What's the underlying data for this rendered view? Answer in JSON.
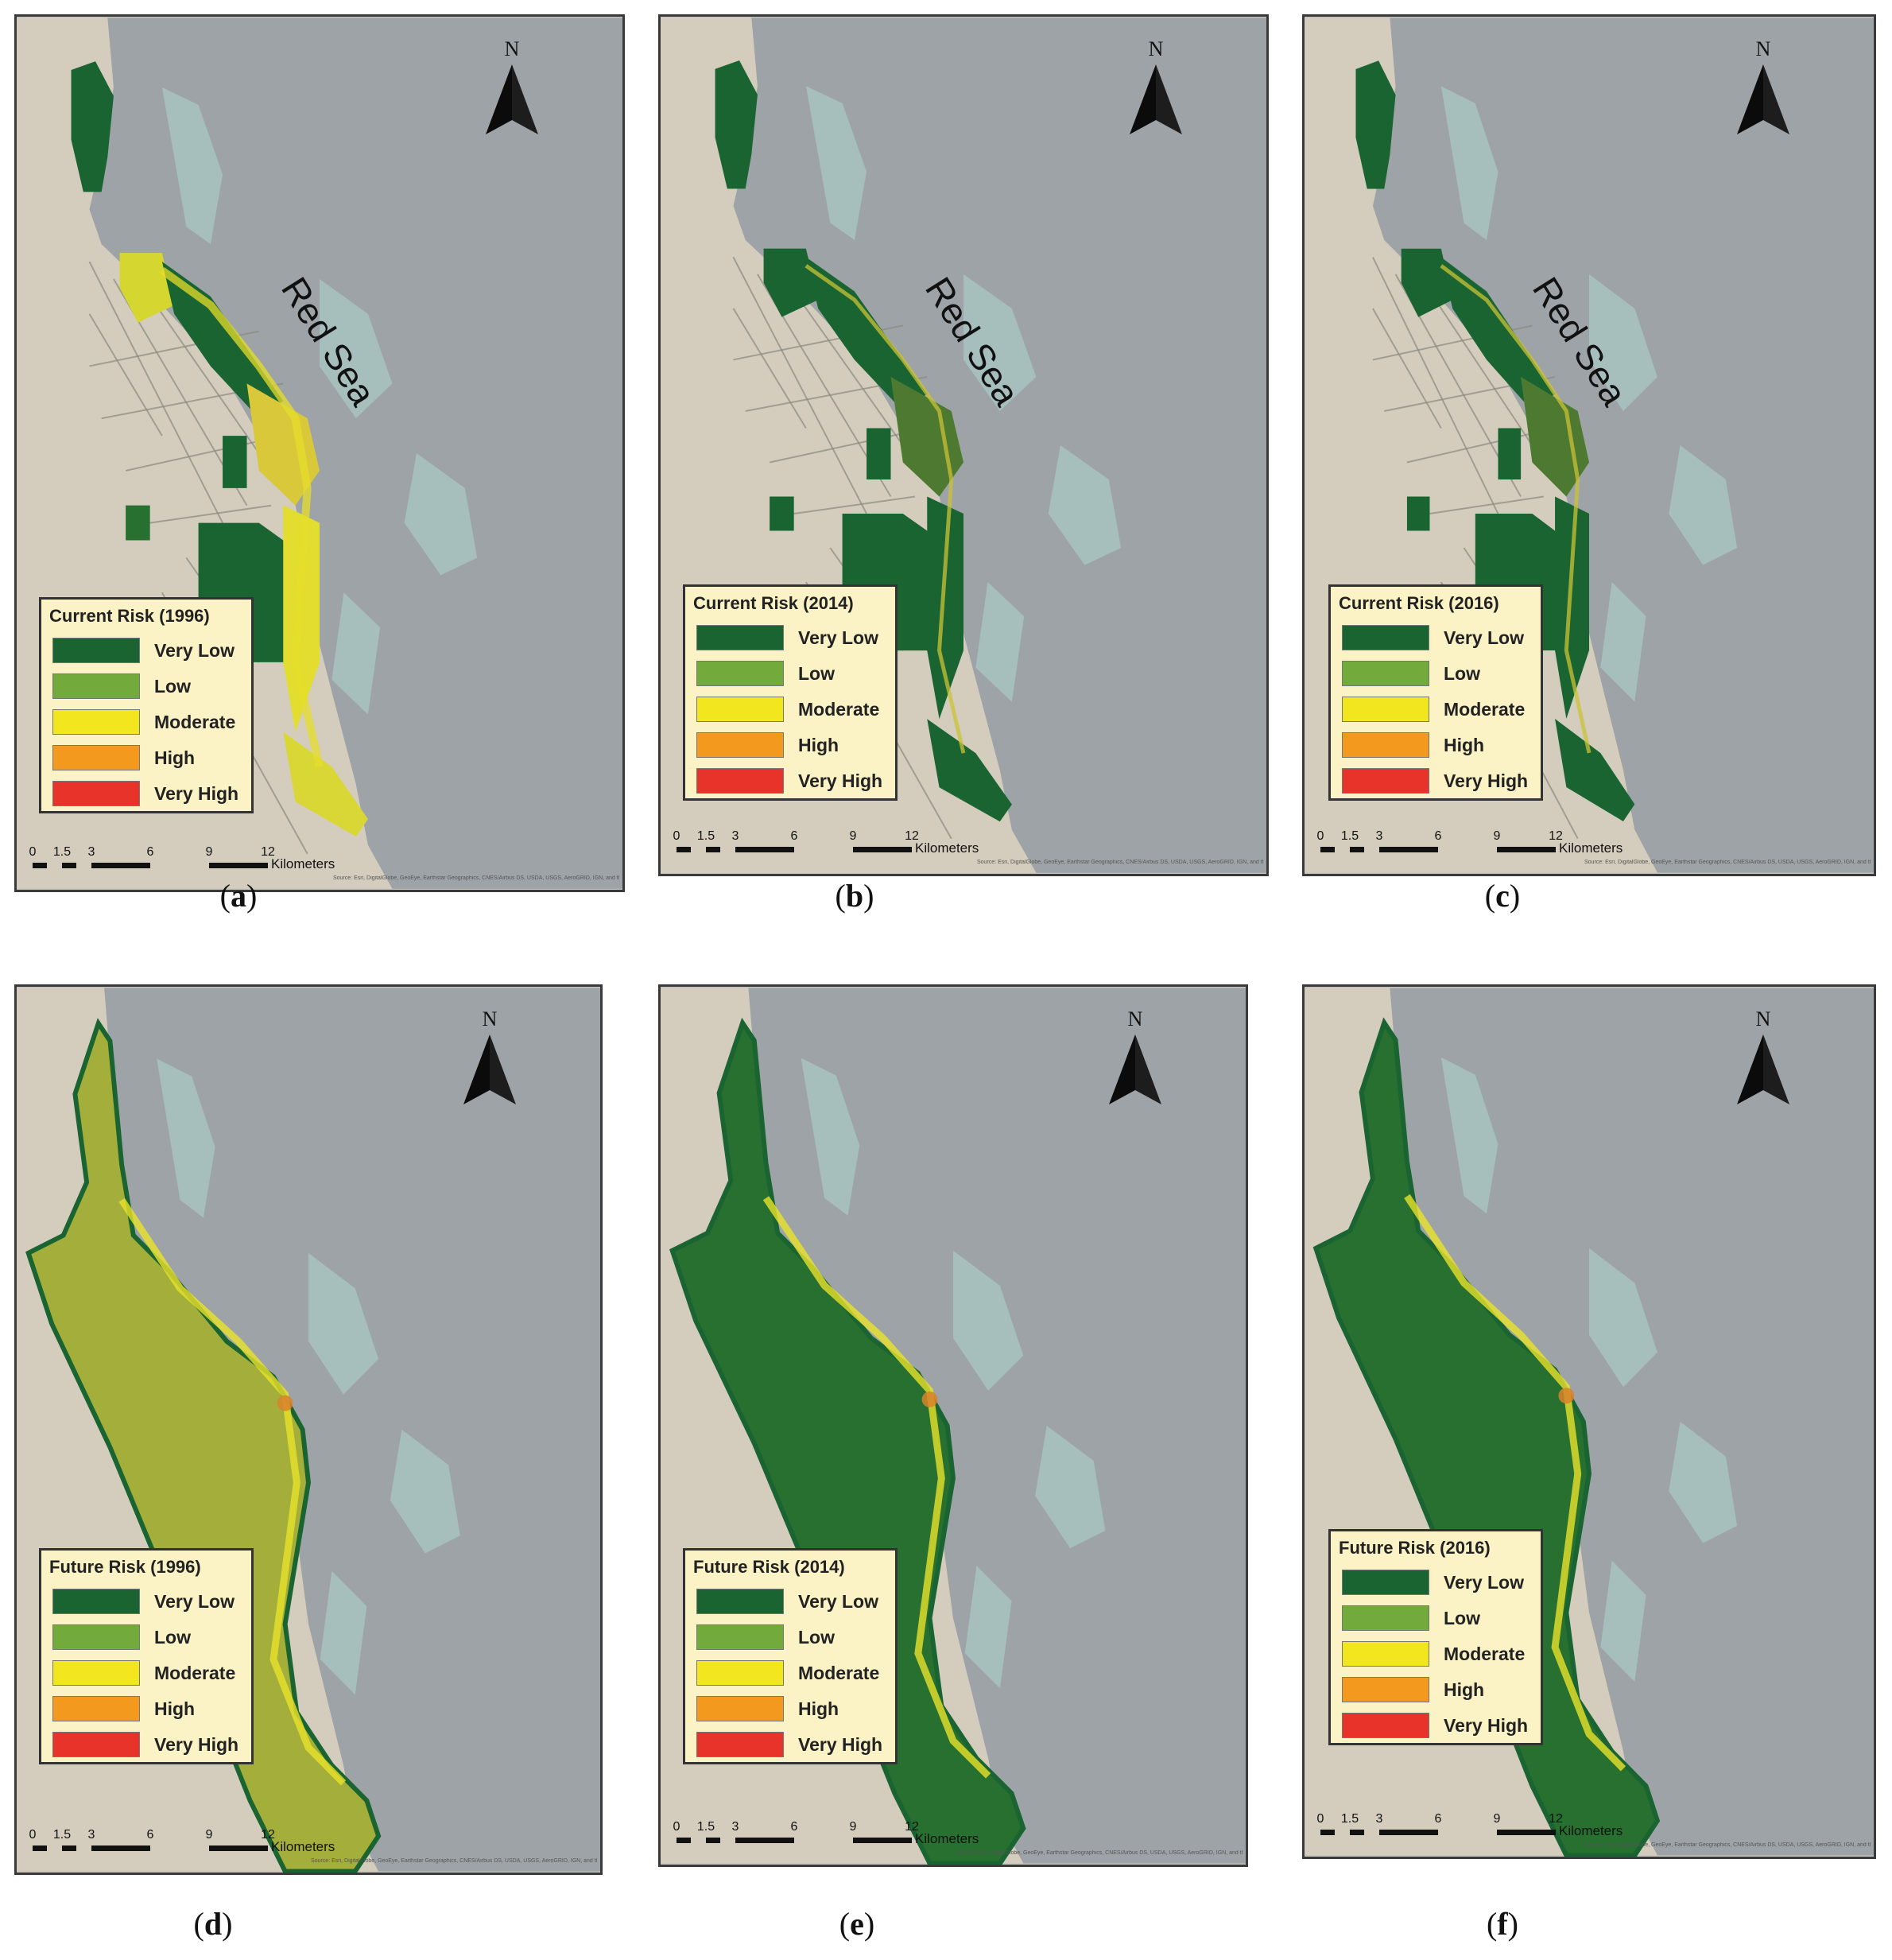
{
  "north_label": "N",
  "sea_label": "Red Sea",
  "scale_ticks": [
    "0",
    "1.5",
    "3",
    "6",
    "9",
    "12"
  ],
  "scale_unit": "Kilometers",
  "credit_text": "Source: Esri, DigitalGlobe, GeoEye, Earthstar Geographics, CNES/Airbus DS, USDA, USGS, AeroGRID, IGN, and the GIS User Community",
  "legend_classes": [
    {
      "label": "Very Low",
      "color": "#1a6432"
    },
    {
      "label": "Low",
      "color": "#72aa3c"
    },
    {
      "label": "Moderate",
      "color": "#f2e61e"
    },
    {
      "label": "High",
      "color": "#f39a1e"
    },
    {
      "label": "Very High",
      "color": "#e8332a"
    }
  ],
  "panels": [
    {
      "caption_letter": "a",
      "legend_title": "Current Risk (1996)",
      "kind": "current",
      "dominant": "mixed"
    },
    {
      "caption_letter": "b",
      "legend_title": "Current Risk (2014)",
      "kind": "current",
      "dominant": "green"
    },
    {
      "caption_letter": "c",
      "legend_title": "Current Risk (2016)",
      "kind": "current",
      "dominant": "green"
    },
    {
      "caption_letter": "d",
      "legend_title": "Future Risk (1996)",
      "kind": "future",
      "dominant": "light"
    },
    {
      "caption_letter": "e",
      "legend_title": "Future Risk (2014)",
      "kind": "future",
      "dominant": "green"
    },
    {
      "caption_letter": "f",
      "legend_title": "Future Risk (2016)",
      "kind": "future",
      "dominant": "green"
    }
  ],
  "colors": {
    "land": "#d4cdbd",
    "sea": "#9ea3a8",
    "reef": "#a8c4c0",
    "very_low": "#1a6432",
    "dark_green": "#27702f",
    "light_green": "#a4ae3a"
  }
}
